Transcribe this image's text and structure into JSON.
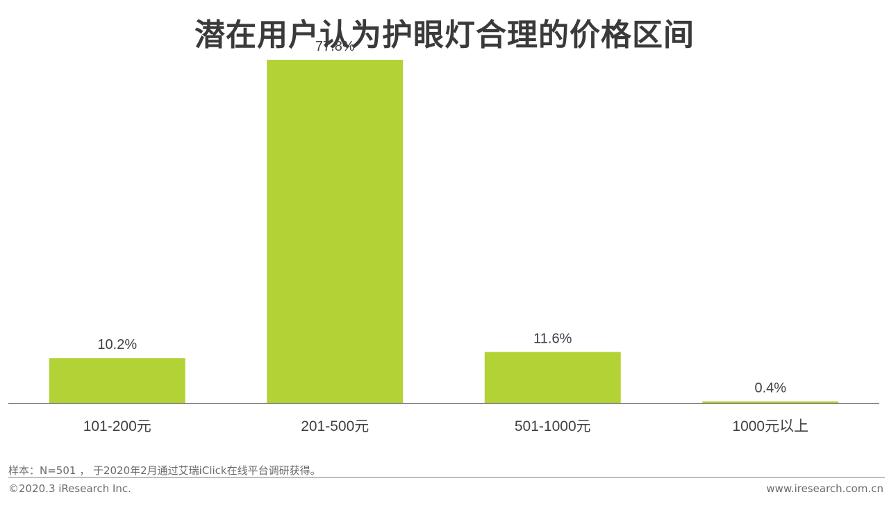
{
  "title": "潜在用户认为护眼灯合理的价格区间",
  "colors": {
    "bar": "#b2d235",
    "axis": "#7f7f7f",
    "label": "#404040"
  },
  "chart_data": {
    "type": "bar",
    "title": "潜在用户认为护眼灯合理的价格区间",
    "categories": [
      "101-200元",
      "201-500元",
      "501-1000元",
      "1000元以上"
    ],
    "values": [
      10.2,
      77.8,
      11.6,
      0.4
    ],
    "data_labels": [
      "10.2%",
      "77.8%",
      "11.6%",
      "0.4%"
    ],
    "ylim": [
      0,
      80
    ],
    "grid": false,
    "legend": "none"
  },
  "footer": {
    "note": "样本：N=501 ， 于2020年2月通过艾瑞iClick在线平台调研获得。",
    "copyright": "©2020.3 iResearch Inc.",
    "website": "www.iresearch.com.cn"
  }
}
